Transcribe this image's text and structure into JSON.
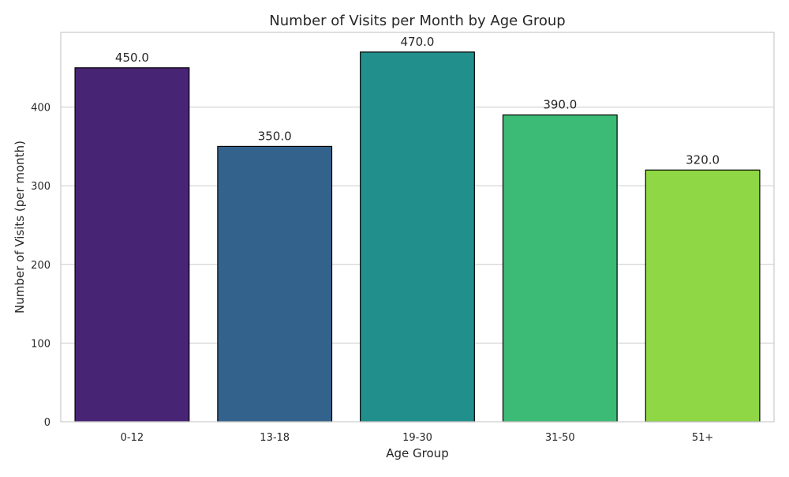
{
  "chart_data": {
    "type": "bar",
    "title": "Number of Visits per Month by Age Group",
    "xlabel": "Age Group",
    "ylabel": "Number of Visits (per month)",
    "categories": [
      "0-12",
      "13-18",
      "19-30",
      "31-50",
      "51+"
    ],
    "values": [
      450,
      350,
      470,
      390,
      320
    ],
    "data_labels": [
      "450.0",
      "350.0",
      "470.0",
      "390.0",
      "320.0"
    ],
    "ylim": [
      0,
      495
    ],
    "yticks": [
      0,
      100,
      200,
      300,
      400
    ],
    "grid": "horizontal",
    "legend": "none",
    "colors": [
      "#482475",
      "#33638d",
      "#21908d",
      "#3bbb75",
      "#8fd744"
    ],
    "bar_edge_color": "#000000",
    "grid_color": "#cccccc",
    "frame_color": "#cccccc"
  }
}
